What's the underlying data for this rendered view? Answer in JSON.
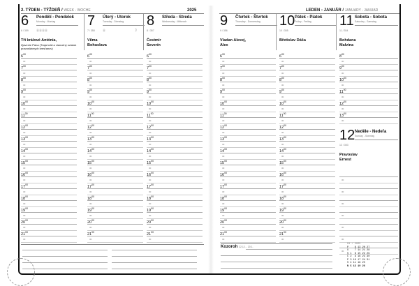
{
  "header": {
    "week": "2. TÝDEN - TÝŽDEŇ /",
    "week_sub": "WEEK - WOCHE",
    "year": "2025",
    "month": "LEDEN - JANUÁR /",
    "month_sub": "JANUARY - JANUAR"
  },
  "days": [
    {
      "num": "6",
      "name": "Pondělí - Pondelok",
      "sub": "Monday - Montag",
      "count": "6 / 359",
      "names": "Tři králové Antónia,",
      "extra": "Zjavenie Pána (Traja králi a vianočný sviatok pravoslávnych kresťanov)",
      "badges": "⓪⓪⓪⓪"
    },
    {
      "num": "7",
      "name": "Úterý - Utorok",
      "sub": "Tuesday - Dienstag",
      "count": "7 / 358",
      "names": "Vilma Bohuslava",
      "badges": "⓪"
    },
    {
      "num": "8",
      "name": "Středa - Streda",
      "sub": "Wednesday - Mittwoch",
      "count": "8 / 357",
      "names": "Čestmír Severín"
    },
    {
      "num": "9",
      "name": "Čtvrtek - Štvrtok",
      "sub": "Thursday - Donnerstag",
      "count": "9 / 356",
      "names": "Vladan Alexej, Alex"
    },
    {
      "num": "10",
      "name": "Pátek - Piatok",
      "sub": "Friday - Freitag",
      "count": "10 / 355",
      "names": "Břetislav Dáša"
    },
    {
      "num": "11",
      "name": "Sobota - Sobota",
      "sub": "Saturday - Samstag",
      "count": "11 / 354",
      "names": "Bohdana Malvína"
    },
    {
      "num": "12",
      "name": "Neděle - Nedeľa",
      "sub": "Sunday - Sonntag",
      "count": "12 / 353",
      "names": "Pravoslav Ernest"
    }
  ],
  "hours": [
    "6",
    "7",
    "8",
    "9",
    "10",
    "11",
    "12",
    "13",
    "14",
    "15",
    "16",
    "17",
    "18",
    "19",
    "20",
    "21"
  ],
  "sat_hours": [
    "8",
    "9",
    "10",
    "11",
    "12",
    "13"
  ],
  "minutes": "00",
  "half": "30",
  "zodiac": {
    "label": "Kozoroh",
    "range": "22.12. - 20.1."
  },
  "mini_calendar": {
    "title": "01 / 2025",
    "rows": [
      {
        "d": "P",
        "v": "    6 13 20 27"
      },
      {
        "d": "U",
        "v": "    7 14 21 28"
      },
      {
        "d": "S",
        "v": " 1  8 15 22 29"
      },
      {
        "d": "Č",
        "v": " 2  9 16 23 30"
      },
      {
        "d": "P",
        "v": " 3 10 17 24 31"
      },
      {
        "d": "S",
        "v": " 4 11 18 25"
      },
      {
        "d": "N",
        "v": " 5 12 19 26"
      }
    ]
  },
  "icons": {
    "moon": "moon-phase-icon"
  }
}
